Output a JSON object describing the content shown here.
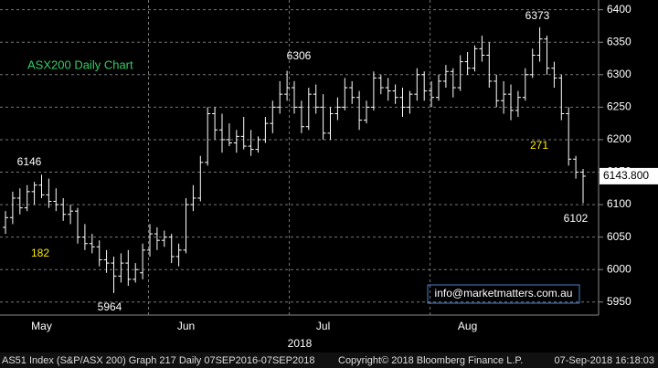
{
  "chart_data": {
    "type": "ohlc",
    "title": "ASX200 Daily Chart",
    "categories": [
      null,
      null,
      null,
      null,
      null,
      "May",
      null,
      null,
      null,
      null,
      null,
      null,
      null,
      null,
      null,
      null,
      null,
      null,
      null,
      null,
      null,
      null,
      null,
      null,
      null,
      "Jun",
      null,
      null,
      null,
      null,
      null,
      null,
      null,
      null,
      null,
      null,
      null,
      null,
      null,
      null,
      null,
      null,
      null,
      null,
      "Jul",
      null,
      null,
      null,
      null,
      null,
      null,
      null,
      null,
      null,
      null,
      null,
      null,
      null,
      null,
      null,
      null,
      null,
      null,
      null,
      "Aug",
      null,
      null,
      null,
      null,
      null,
      null,
      null,
      null,
      null,
      null,
      null,
      null,
      null,
      null,
      null,
      null
    ],
    "open": [
      6065,
      6080,
      6110,
      6095,
      6120,
      6130,
      6115,
      6105,
      6100,
      6085,
      6090,
      6050,
      6040,
      6035,
      6015,
      6010,
      5990,
      6010,
      5985,
      5995,
      6030,
      6055,
      6045,
      6050,
      6020,
      6030,
      6100,
      6110,
      6165,
      6240,
      6215,
      6200,
      6195,
      6205,
      6190,
      6185,
      6200,
      6225,
      6250,
      6270,
      6280,
      6250,
      6220,
      6270,
      6250,
      6210,
      6240,
      6250,
      6280,
      6265,
      6230,
      6250,
      6295,
      6280,
      6275,
      6265,
      6250,
      6270,
      6300,
      6275,
      6265,
      6290,
      6305,
      6280,
      6320,
      6310,
      6340,
      6330,
      6290,
      6260,
      6270,
      6245,
      6265,
      6300,
      6330,
      6355,
      6310,
      6295,
      6240,
      6170,
      6150
    ],
    "high": [
      6090,
      6120,
      6125,
      6130,
      6135,
      6146,
      6140,
      6125,
      6110,
      6100,
      6095,
      6070,
      6055,
      6045,
      6030,
      6020,
      6025,
      6030,
      6010,
      6040,
      6070,
      6065,
      6060,
      6055,
      6040,
      6110,
      6130,
      6175,
      6250,
      6250,
      6240,
      6225,
      6215,
      6235,
      6215,
      6205,
      6235,
      6260,
      6290,
      6306,
      6290,
      6260,
      6280,
      6285,
      6270,
      6250,
      6265,
      6295,
      6290,
      6275,
      6260,
      6305,
      6300,
      6295,
      6285,
      6280,
      6275,
      6310,
      6305,
      6290,
      6300,
      6315,
      6310,
      6330,
      6335,
      6345,
      6360,
      6350,
      6300,
      6290,
      6285,
      6275,
      6310,
      6340,
      6373,
      6360,
      6320,
      6300,
      6250,
      6175,
      6155
    ],
    "low": [
      6055,
      6070,
      6085,
      6090,
      6100,
      6110,
      6095,
      6090,
      6075,
      6070,
      6040,
      6030,
      6025,
      6005,
      5995,
      5964,
      5980,
      5975,
      5980,
      5985,
      6020,
      6030,
      6035,
      6010,
      6005,
      6025,
      6090,
      6105,
      6160,
      6200,
      6180,
      6190,
      6180,
      6185,
      6175,
      6180,
      6195,
      6210,
      6240,
      6260,
      6240,
      6210,
      6215,
      6240,
      6200,
      6200,
      6230,
      6245,
      6255,
      6215,
      6225,
      6245,
      6270,
      6260,
      6255,
      6235,
      6240,
      6260,
      6260,
      6250,
      6260,
      6280,
      6265,
      6275,
      6300,
      6305,
      6320,
      6280,
      6250,
      6240,
      6230,
      6235,
      6260,
      6295,
      6320,
      6300,
      6280,
      6230,
      6160,
      6140,
      6102
    ],
    "close": [
      6080,
      6110,
      6095,
      6120,
      6130,
      6115,
      6105,
      6100,
      6085,
      6090,
      6050,
      6040,
      6035,
      6015,
      6010,
      5990,
      6010,
      5985,
      6000,
      6030,
      6055,
      6045,
      6050,
      6020,
      6030,
      6100,
      6110,
      6165,
      6240,
      6215,
      6200,
      6195,
      6205,
      6190,
      6185,
      6200,
      6225,
      6250,
      6270,
      6280,
      6250,
      6220,
      6270,
      6250,
      6210,
      6240,
      6250,
      6280,
      6265,
      6230,
      6250,
      6295,
      6280,
      6275,
      6265,
      6250,
      6270,
      6300,
      6275,
      6265,
      6290,
      6305,
      6280,
      6320,
      6310,
      6340,
      6330,
      6290,
      6260,
      6270,
      6245,
      6265,
      6300,
      6330,
      6355,
      6310,
      6295,
      6240,
      6170,
      6150,
      6143.8
    ],
    "color": "#ffffff",
    "ylim": [
      5930,
      6415
    ],
    "yticks": [
      5950,
      6000,
      6050,
      6100,
      6150,
      6200,
      6250,
      6300,
      6350,
      6400
    ],
    "grid": true,
    "last_price": {
      "value": 6143.8,
      "label": "6143.800"
    },
    "x_axis_label": "2018",
    "annotations": [
      "6373",
      "6306",
      "6146",
      "182",
      "5964",
      "271",
      "6102"
    ],
    "watermark": "info@marketmatters.com.au",
    "footer": [
      "AS51 Index (S&P/ASX 200) Graph 217  Daily 07SEP2016-07SEP2018",
      "Copyright© 2018 Bloomberg Finance L.P.",
      "07-Sep-2018 16:18:03"
    ]
  }
}
